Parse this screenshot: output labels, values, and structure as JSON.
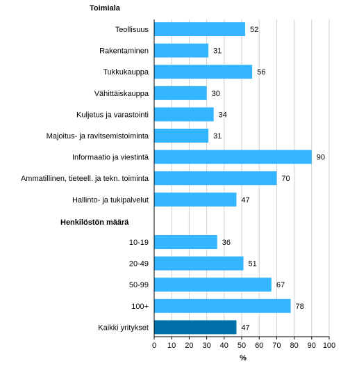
{
  "chart_data": {
    "type": "bar",
    "orientation": "horizontal",
    "xlabel": "%",
    "xlim": [
      0,
      100
    ],
    "xticks": [
      0,
      10,
      20,
      30,
      40,
      50,
      60,
      70,
      80,
      90,
      100
    ],
    "grid": true,
    "legend": "none",
    "groups": [
      {
        "heading": "Toimiala",
        "categories": [
          "Teollisuus",
          "Rakentaminen",
          "Tukkukauppa",
          "Vähittäiskauppa",
          "Kuljetus ja varastointi",
          "Majoitus- ja ravitsemistoiminta",
          "Informaatio ja viestintä",
          "Ammatillinen, tieteell. ja tekn. toiminta",
          "Hallinto- ja tukipalvelut"
        ],
        "values": [
          52,
          31,
          56,
          30,
          34,
          31,
          90,
          70,
          47
        ]
      },
      {
        "heading": "Henkilöstön määrä",
        "categories": [
          "10-19",
          "20-49",
          "50-99",
          "100+",
          "Kaikki yritykset"
        ],
        "values": [
          36,
          51,
          67,
          78,
          47
        ]
      }
    ],
    "colors": {
      "bar": "#33b5ff",
      "highlight": "#0070a8",
      "grid": "#d0d0d0",
      "axis": "#000000"
    },
    "highlight_category": "Kaikki yritykset"
  }
}
